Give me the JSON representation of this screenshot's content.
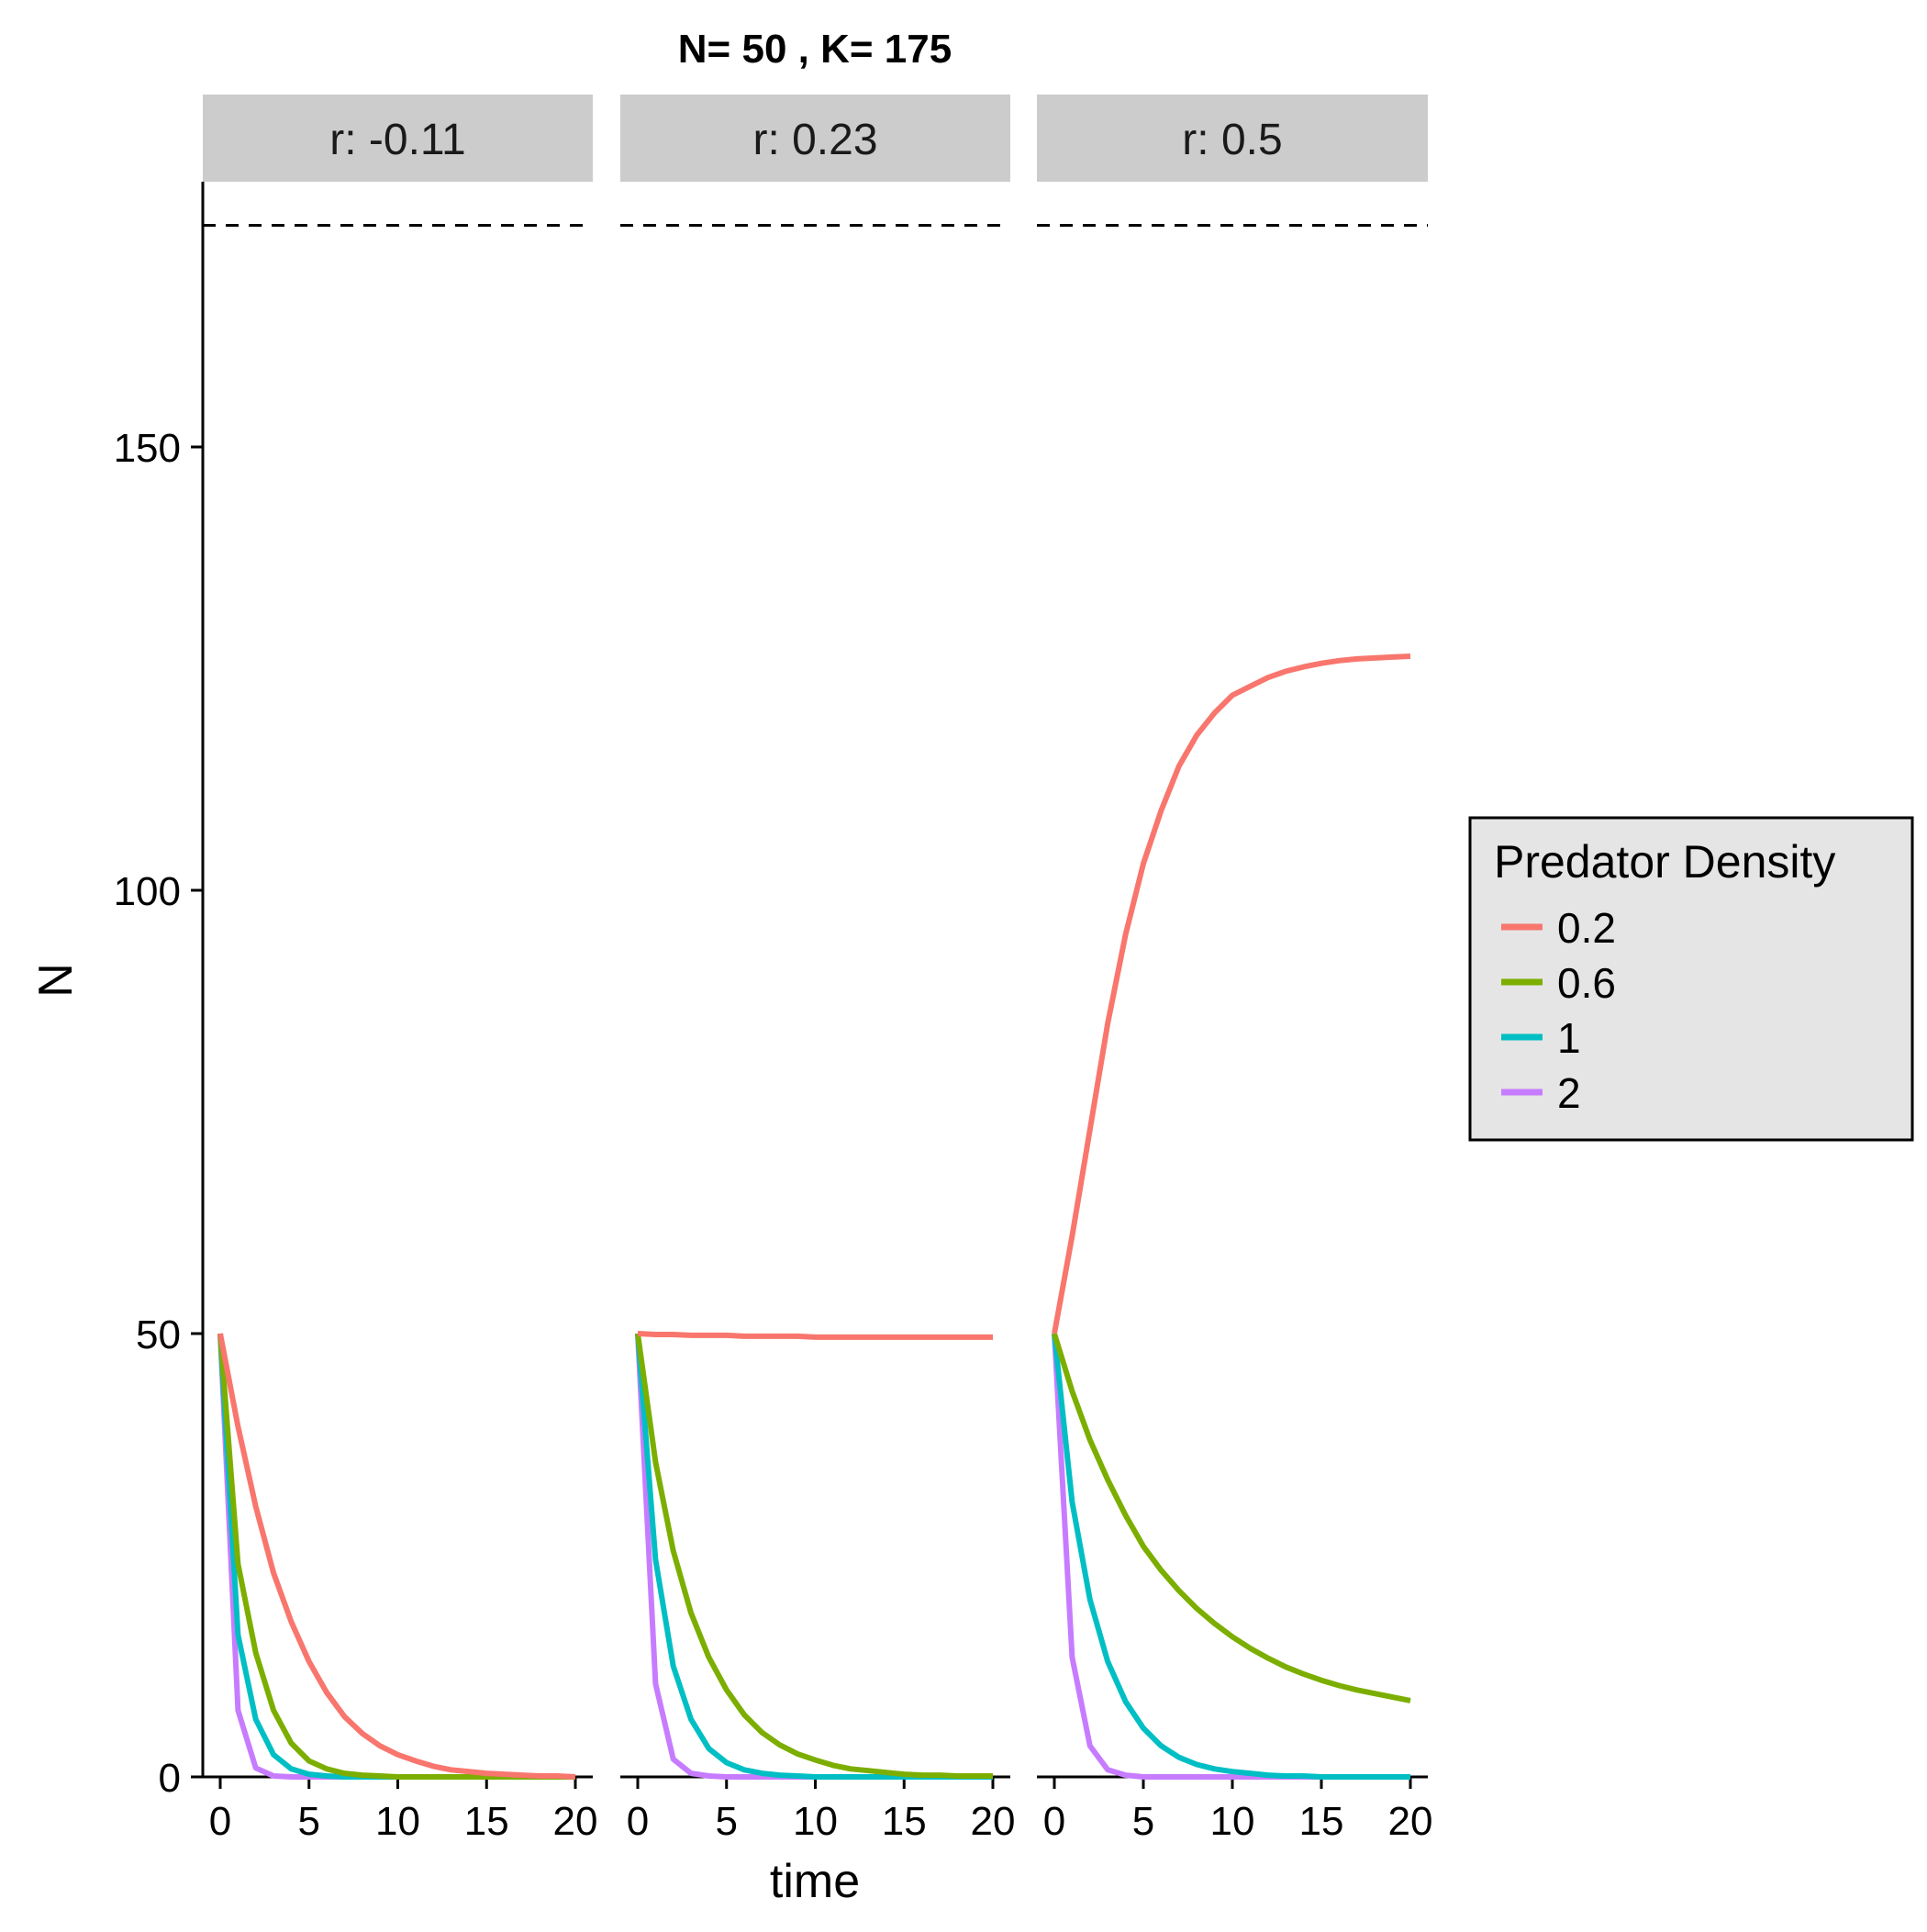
{
  "chart_data": {
    "type": "line",
    "title": "N= 50 , K= 175",
    "xlabel": "time",
    "ylabel": "N",
    "xlim": [
      0,
      20
    ],
    "ylim": [
      0,
      175
    ],
    "x_ticks": [
      0,
      5,
      10,
      15,
      20
    ],
    "y_ticks": [
      0,
      50,
      100,
      150
    ],
    "reference_line": {
      "y": 175,
      "style": "dashed",
      "color": "#000000"
    },
    "x": [
      0,
      1,
      2,
      3,
      4,
      5,
      6,
      7,
      8,
      9,
      10,
      11,
      12,
      13,
      14,
      15,
      16,
      17,
      18,
      19,
      20
    ],
    "legend": {
      "title": "Predator Density",
      "placement": "right"
    },
    "series_meta": [
      {
        "name": "0.2",
        "color": "#F8766D"
      },
      {
        "name": "0.6",
        "color": "#7CAE00"
      },
      {
        "name": "1",
        "color": "#00BFC4"
      },
      {
        "name": "2",
        "color": "#C77CFF"
      }
    ],
    "facets": [
      {
        "label": "r: -0.11",
        "series": [
          {
            "name": "0.2",
            "values": [
              50,
              39.5,
              30.5,
              23.0,
              17.5,
              13.0,
              9.5,
              6.8,
              4.9,
              3.5,
              2.5,
              1.8,
              1.2,
              0.8,
              0.6,
              0.4,
              0.3,
              0.2,
              0.1,
              0.1,
              0.0
            ]
          },
          {
            "name": "0.6",
            "values": [
              50,
              24.0,
              14.0,
              7.5,
              3.8,
              1.8,
              0.9,
              0.4,
              0.2,
              0.1,
              0.0,
              0,
              0,
              0,
              0,
              0,
              0,
              0,
              0,
              0,
              0
            ]
          },
          {
            "name": "1",
            "values": [
              50,
              16.0,
              6.5,
              2.5,
              0.9,
              0.3,
              0.1,
              0.0,
              0,
              0,
              0,
              0,
              0,
              0,
              0,
              0,
              0,
              0,
              0,
              0,
              0
            ]
          },
          {
            "name": "2",
            "values": [
              50,
              7.5,
              1.0,
              0.1,
              0.0,
              0,
              0,
              0,
              0,
              0,
              0,
              0,
              0,
              0,
              0,
              0,
              0,
              0,
              0,
              0,
              0
            ]
          }
        ]
      },
      {
        "label": "r: 0.23",
        "series": [
          {
            "name": "0.2",
            "values": [
              50,
              49.9,
              49.9,
              49.8,
              49.8,
              49.8,
              49.7,
              49.7,
              49.7,
              49.7,
              49.6,
              49.6,
              49.6,
              49.6,
              49.6,
              49.6,
              49.6,
              49.6,
              49.6,
              49.6,
              49.6
            ]
          },
          {
            "name": "0.6",
            "values": [
              50,
              35.5,
              25.5,
              18.5,
              13.5,
              9.8,
              7.0,
              5.0,
              3.6,
              2.6,
              1.9,
              1.3,
              0.9,
              0.7,
              0.5,
              0.3,
              0.2,
              0.2,
              0.1,
              0.1,
              0.1
            ]
          },
          {
            "name": "1",
            "values": [
              50,
              24.5,
              12.5,
              6.5,
              3.2,
              1.6,
              0.8,
              0.4,
              0.2,
              0.1,
              0.0,
              0,
              0,
              0,
              0,
              0,
              0,
              0,
              0,
              0,
              0
            ]
          },
          {
            "name": "2",
            "values": [
              50,
              10.5,
              2.0,
              0.4,
              0.1,
              0.0,
              0,
              0,
              0,
              0,
              0,
              0,
              0,
              0,
              0,
              0,
              0,
              0,
              0,
              0,
              0
            ]
          }
        ]
      },
      {
        "label": "r: 0.5",
        "series": [
          {
            "name": "0.2",
            "values": [
              50,
              61.0,
              73.0,
              85.0,
              95.0,
              103.0,
              109.0,
              114.0,
              117.5,
              120.0,
              122.0,
              123.0,
              124.0,
              124.7,
              125.2,
              125.6,
              125.9,
              126.1,
              126.2,
              126.3,
              126.4
            ]
          },
          {
            "name": "0.6",
            "values": [
              50,
              43.5,
              38.0,
              33.5,
              29.5,
              26.0,
              23.3,
              21.0,
              19.0,
              17.3,
              15.8,
              14.5,
              13.4,
              12.4,
              11.6,
              10.9,
              10.3,
              9.8,
              9.4,
              9.0,
              8.6
            ]
          },
          {
            "name": "1",
            "values": [
              50,
              31.0,
              20.0,
              13.0,
              8.5,
              5.5,
              3.5,
              2.2,
              1.4,
              0.9,
              0.6,
              0.4,
              0.2,
              0.1,
              0.1,
              0.0,
              0,
              0,
              0,
              0,
              0
            ]
          },
          {
            "name": "2",
            "values": [
              50,
              13.5,
              3.5,
              0.8,
              0.2,
              0.0,
              0,
              0,
              0,
              0,
              0,
              0,
              0,
              0,
              0,
              0,
              0,
              0,
              0,
              0,
              0
            ]
          }
        ]
      }
    ]
  }
}
